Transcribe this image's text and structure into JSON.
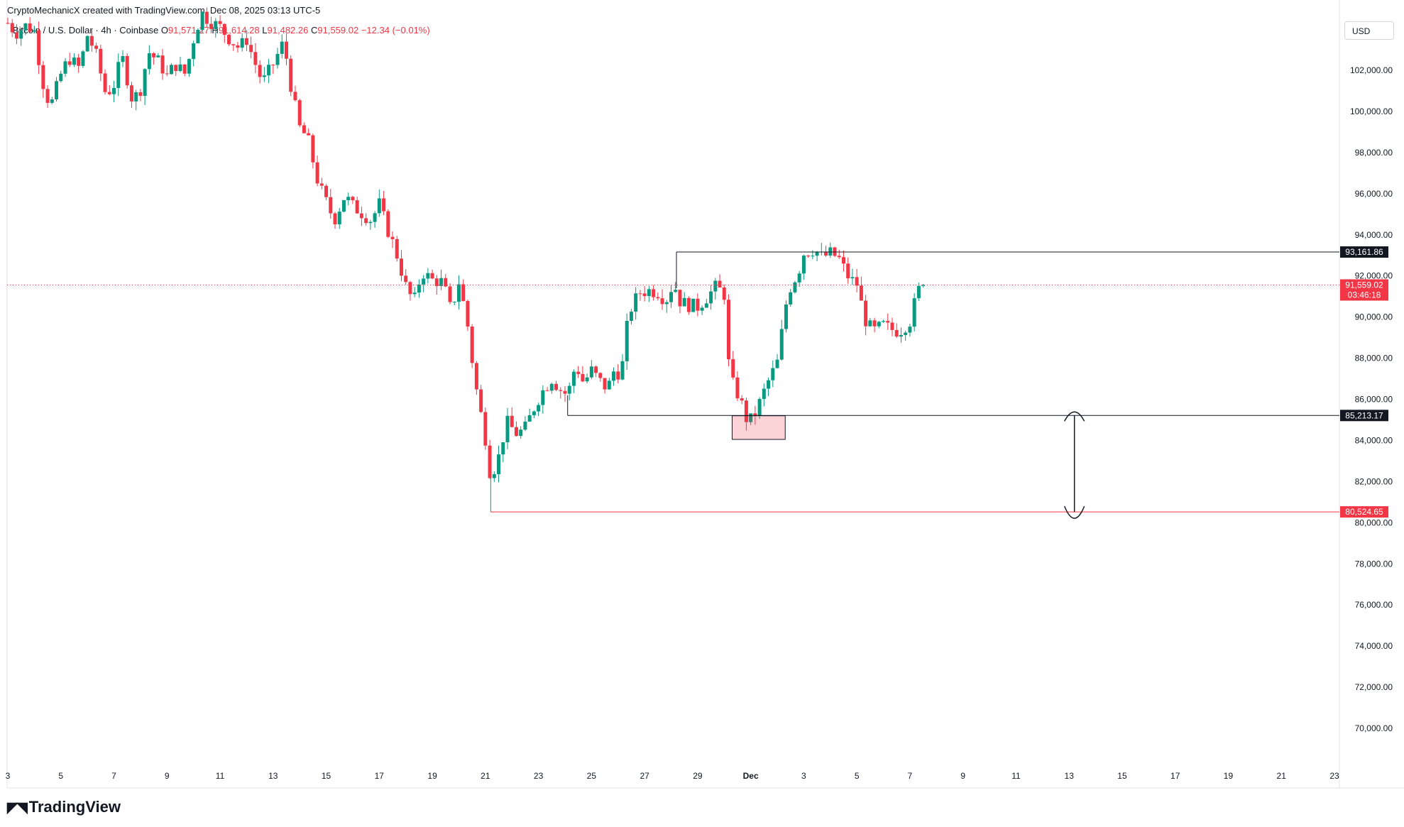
{
  "header": {
    "credit": "CryptoMechanicX created with TradingView.com, Dec 08, 2025 03:13 UTC-5",
    "symbol": "Bitcoin / U.S. Dollar · 4h · Coinbase",
    "o_label": "O",
    "o_value": "91,571.27",
    "h_label": "H",
    "h_value": "91,614.28",
    "l_label": "L",
    "l_value": "91,482.26",
    "c_label": "C",
    "c_value": "91,559.02",
    "change": "−12.34 (−0.01%)",
    "currency": "USD"
  },
  "footer": {
    "logo_text": "TradingView"
  },
  "colors": {
    "up": "#089981",
    "down": "#f23645",
    "grid": "#f0f3fa",
    "level": "#131722",
    "support": "#f23645"
  },
  "chart_data": {
    "type": "candlestick",
    "title": "",
    "ylim": [
      68000,
      104000
    ],
    "y_ticks": [
      "102,000.00",
      "100,000.00",
      "98,000.00",
      "96,000.00",
      "94,000.00",
      "92,000.00",
      "90,000.00",
      "88,000.00",
      "86,000.00",
      "84,000.00",
      "82,000.00",
      "80,000.00",
      "78,000.00",
      "76,000.00",
      "74,000.00",
      "72,000.00",
      "70,000.00"
    ],
    "y_tick_values": [
      102000,
      100000,
      98000,
      96000,
      94000,
      92000,
      90000,
      88000,
      86000,
      84000,
      82000,
      80000,
      78000,
      76000,
      74000,
      72000,
      70000
    ],
    "x_ticks": [
      "3",
      "5",
      "7",
      "9",
      "11",
      "13",
      "15",
      "17",
      "19",
      "21",
      "23",
      "25",
      "27",
      "29",
      "Dec",
      "3",
      "5",
      "7",
      "9",
      "11",
      "13",
      "15",
      "17",
      "19",
      "21",
      "23"
    ],
    "x_tick_days": [
      3,
      5,
      7,
      9,
      11,
      13,
      15,
      17,
      19,
      21,
      23,
      25,
      27,
      29,
      31,
      33,
      35,
      37,
      39,
      41,
      43,
      45,
      47,
      49,
      51,
      53
    ],
    "x_range_days": [
      3,
      53.2
    ],
    "price_lines": [
      {
        "label": "93,161.86",
        "value": 93161.86,
        "from_day": 28.2,
        "color": "#131722",
        "bg": "#131722"
      },
      {
        "label": "85,213.17",
        "value": 85213.17,
        "from_day": 24.1,
        "color": "#131722",
        "bg": "#131722"
      },
      {
        "label": "80,524.65",
        "value": 80524.65,
        "from_day": 21.2,
        "color": "#f23645",
        "bg": "#f23645"
      }
    ],
    "last_price": {
      "label": "91,559.02",
      "countdown": "03:46:18",
      "value": 91559.02
    },
    "demand_zone": {
      "day_from": 30.3,
      "day_to": 32.3,
      "price_low": 84050,
      "price_high": 85200
    },
    "range_arrow": {
      "day": 43.2,
      "price_top": 85213.17,
      "price_bottom": 80524.65
    },
    "anchors": [
      [
        3.0,
        104300
      ],
      [
        3.3,
        103800
      ],
      [
        3.7,
        104200
      ],
      [
        4.0,
        103900
      ],
      [
        4.3,
        101500
      ],
      [
        4.6,
        100200
      ],
      [
        5.0,
        101800
      ],
      [
        5.3,
        102600
      ],
      [
        5.7,
        102100
      ],
      [
        6.0,
        103700
      ],
      [
        6.3,
        102900
      ],
      [
        6.7,
        100800
      ],
      [
        7.0,
        101300
      ],
      [
        7.3,
        102700
      ],
      [
        7.7,
        100500
      ],
      [
        8.0,
        101100
      ],
      [
        8.3,
        102900
      ],
      [
        8.7,
        102400
      ],
      [
        9.0,
        101700
      ],
      [
        9.3,
        102300
      ],
      [
        9.7,
        101800
      ],
      [
        10.0,
        103500
      ],
      [
        10.3,
        104800
      ],
      [
        10.6,
        104400
      ],
      [
        11.0,
        104100
      ],
      [
        11.3,
        103600
      ],
      [
        11.7,
        103100
      ],
      [
        12.0,
        103500
      ],
      [
        12.3,
        102400
      ],
      [
        12.6,
        101400
      ],
      [
        13.0,
        102300
      ],
      [
        13.4,
        103400
      ],
      [
        13.7,
        101000
      ],
      [
        14.0,
        99200
      ],
      [
        14.3,
        98700
      ],
      [
        14.7,
        96500
      ],
      [
        15.0,
        95600
      ],
      [
        15.3,
        94700
      ],
      [
        15.7,
        95900
      ],
      [
        16.0,
        95400
      ],
      [
        16.3,
        95100
      ],
      [
        16.7,
        94700
      ],
      [
        17.0,
        95500
      ],
      [
        17.3,
        94300
      ],
      [
        17.6,
        93300
      ],
      [
        18.0,
        91500
      ],
      [
        18.3,
        90700
      ],
      [
        18.6,
        92200
      ],
      [
        19.0,
        91800
      ],
      [
        19.4,
        91700
      ],
      [
        19.7,
        90300
      ],
      [
        20.0,
        91700
      ],
      [
        20.3,
        89900
      ],
      [
        20.6,
        86900
      ],
      [
        21.0,
        84100
      ],
      [
        21.2,
        82200
      ],
      [
        21.5,
        83200
      ],
      [
        21.8,
        84900
      ],
      [
        22.2,
        84300
      ],
      [
        22.5,
        84600
      ],
      [
        22.8,
        85500
      ],
      [
        23.1,
        86300
      ],
      [
        23.5,
        87000
      ],
      [
        23.8,
        86500
      ],
      [
        24.1,
        86200
      ],
      [
        24.4,
        87700
      ],
      [
        24.7,
        86800
      ],
      [
        25.0,
        87400
      ],
      [
        25.3,
        86900
      ],
      [
        25.6,
        86500
      ],
      [
        25.9,
        87600
      ],
      [
        26.1,
        87000
      ],
      [
        26.4,
        90200
      ],
      [
        26.8,
        91200
      ],
      [
        27.2,
        91300
      ],
      [
        27.5,
        91200
      ],
      [
        27.8,
        90800
      ],
      [
        28.1,
        91700
      ],
      [
        28.3,
        90800
      ],
      [
        28.6,
        90600
      ],
      [
        29.0,
        90500
      ],
      [
        29.3,
        90900
      ],
      [
        29.7,
        91500
      ],
      [
        30.0,
        91100
      ],
      [
        30.2,
        87100
      ],
      [
        30.6,
        86000
      ],
      [
        30.9,
        84800
      ],
      [
        31.2,
        85400
      ],
      [
        31.6,
        86700
      ],
      [
        32.0,
        87800
      ],
      [
        32.4,
        91200
      ],
      [
        32.8,
        92200
      ],
      [
        33.0,
        93100
      ],
      [
        33.4,
        93300
      ],
      [
        33.7,
        92900
      ],
      [
        34.0,
        93100
      ],
      [
        34.3,
        92900
      ],
      [
        34.7,
        91900
      ],
      [
        35.0,
        91600
      ],
      [
        35.3,
        89900
      ],
      [
        35.6,
        89300
      ],
      [
        36.0,
        89600
      ],
      [
        36.3,
        89400
      ],
      [
        36.6,
        89300
      ],
      [
        37.0,
        89800
      ],
      [
        37.3,
        91300
      ],
      [
        37.6,
        91560
      ]
    ]
  }
}
